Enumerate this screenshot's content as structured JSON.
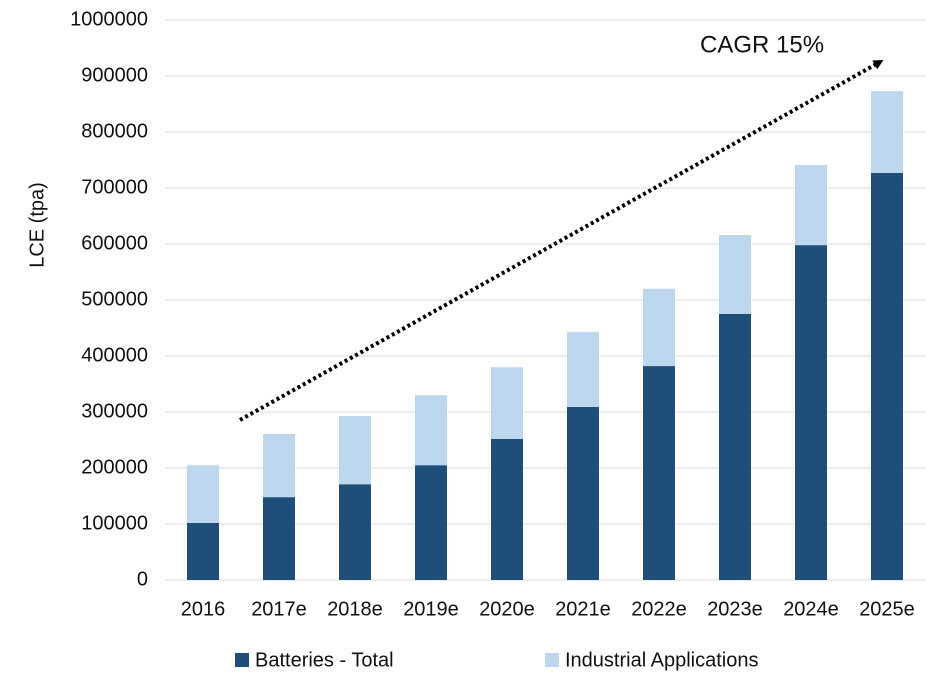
{
  "chart_data": {
    "type": "stacked_bar",
    "y_label": "LCE (tpa)",
    "annotation": "CAGR 15%",
    "categories": [
      "2016",
      "2017e",
      "2018e",
      "2019e",
      "2020e",
      "2021e",
      "2022e",
      "2023e",
      "2024e",
      "2025e"
    ],
    "series": [
      {
        "name": "Batteries - Total",
        "color": "#1f4e79",
        "values": [
          102000,
          148000,
          171000,
          205000,
          252000,
          309000,
          382000,
          475000,
          598000,
          727000
        ]
      },
      {
        "name": "Industrial Applications",
        "color": "#bdd7ee",
        "values": [
          103000,
          113000,
          122000,
          125000,
          128000,
          134000,
          138000,
          141000,
          143000,
          146000
        ]
      }
    ],
    "ylim": [
      0,
      1000000
    ],
    "yticks": [
      0,
      100000,
      200000,
      300000,
      400000,
      500000,
      600000,
      700000,
      800000,
      900000,
      1000000
    ],
    "grid": true,
    "legend": "bottom"
  }
}
